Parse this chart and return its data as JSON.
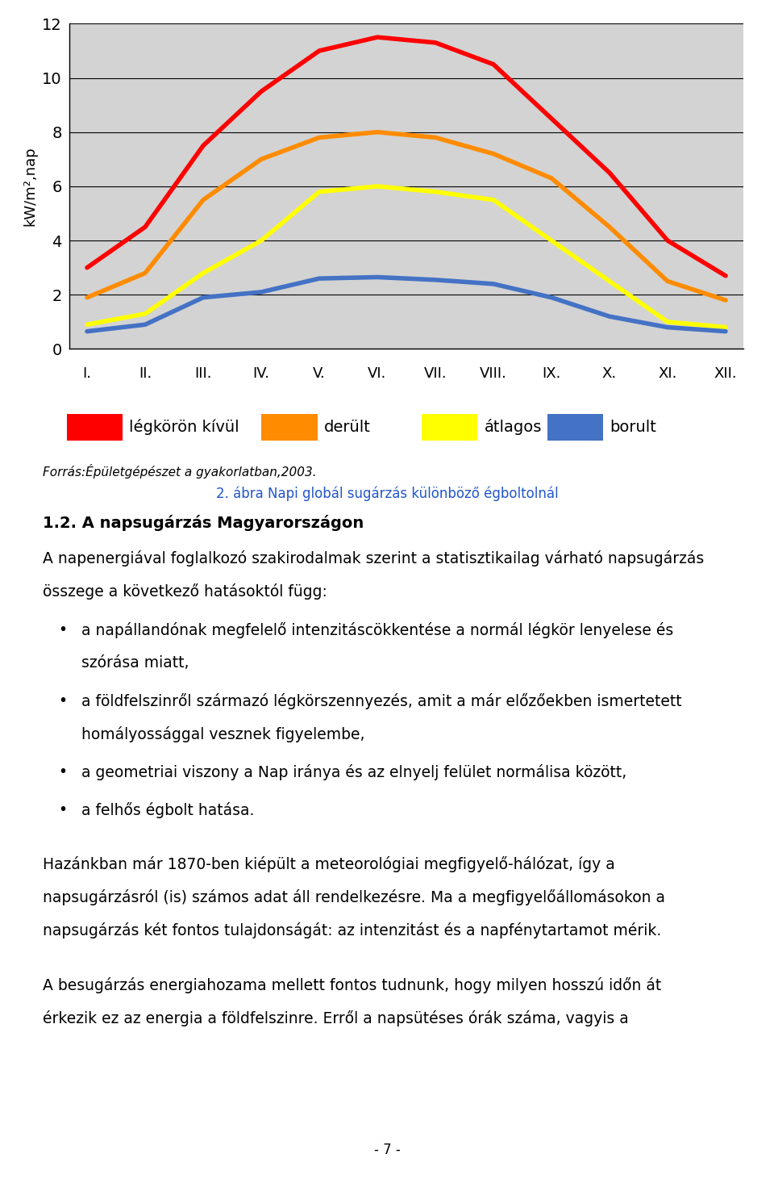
{
  "months": [
    "I.",
    "II.",
    "III.",
    "IV.",
    "V.",
    "VI.",
    "VII.",
    "VIII.",
    "IX.",
    "X.",
    "XI.",
    "XII."
  ],
  "legkoro_kivul": [
    3.0,
    4.5,
    7.5,
    9.5,
    11.0,
    11.5,
    11.3,
    10.5,
    8.5,
    6.5,
    4.0,
    2.7
  ],
  "derult": [
    1.9,
    2.8,
    5.5,
    7.0,
    7.8,
    8.0,
    7.8,
    7.2,
    6.3,
    4.5,
    2.5,
    1.8
  ],
  "atlagos": [
    0.9,
    1.3,
    2.8,
    4.0,
    5.8,
    6.0,
    5.8,
    5.5,
    4.0,
    2.5,
    1.0,
    0.8
  ],
  "borult": [
    0.65,
    0.9,
    1.9,
    2.1,
    2.6,
    2.65,
    2.55,
    2.4,
    1.9,
    1.2,
    0.8,
    0.65
  ],
  "line_colors": [
    "#ff0000",
    "#ff8c00",
    "#ffff00",
    "#4472c4"
  ],
  "line_labels": [
    "légkörön kívül",
    "derült",
    "átlagos",
    "borult"
  ],
  "ylabel": "kW/m²,nap",
  "ylim": [
    0,
    12
  ],
  "yticks": [
    0,
    2,
    4,
    6,
    8,
    10,
    12
  ],
  "chart_bg": "#d3d3d3",
  "source_text": "Forrás:Épületgépészet a gyakorlatban,2003.",
  "caption_text": "2. ábra Napi globál sugárzás különböző égboltolnál",
  "caption_color": "#2255cc",
  "section_title": "1.2. A napsugárzás Magyarországon",
  "body1_line1": "A napenergiával foglalkozó szakirodalmak szerint a statisztikailag várható napsugárzás",
  "body1_line2": "összege a következő hatásoktól függ:",
  "bullet_1a": "a napállandónak megfelelő intenzitáscökkentése a normál légkör lenyelese és",
  "bullet_1b": "szórása miatt,",
  "bullet_2a": "a földfelszinről származó légkörszennyezés, amit a már előzőekben ismertetett",
  "bullet_2b": "homályossággal vesznek figyelembe,",
  "bullet_3": "a geometriai viszony a Nap iránya és az elnyelj felület normálisa között,",
  "bullet_4": "a felhős égbolt hatása.",
  "body2_line1": "Hazánkban már 1870-ben kiépült a meteorológiai megfigyelő-hálózat, így a",
  "body2_line2": "napsugárzásról (is) számos adat áll rendelkezésre. Ma a megfigyelőállomásokon a",
  "body2_line3": "napsugárzás két fontos tulajdonságát: az intenzitást és a napfénytartamot mérik.",
  "body3_line1": "A besugárzás energiahozama mellett fontos tudnunk, hogy milyen hosszú időn át",
  "body3_line2": "érkezik ez az energia a földfelszinre. Erről a napsütéses órák száma, vagyis a",
  "page_number": "- 7 -"
}
